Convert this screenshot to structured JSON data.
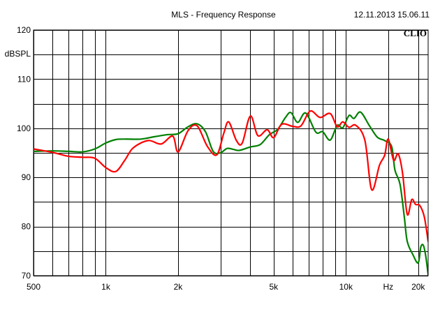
{
  "chart_data": {
    "type": "line",
    "title": "MLS - Frequency Response",
    "timestamp": "12.11.2013 15.06.11",
    "brand": "CLIO",
    "ylabel": "dBSPL",
    "xlabel": "Hz",
    "xscale": "log",
    "xlim": [
      500,
      22000
    ],
    "ylim": [
      70,
      120
    ],
    "grid": true,
    "colors": {
      "background": "#ffffff",
      "grid": "#000000"
    },
    "x_ticks": [
      {
        "value": 500,
        "label": "500"
      },
      {
        "value": 1000,
        "label": "1k"
      },
      {
        "value": 2000,
        "label": "2k"
      },
      {
        "value": 5000,
        "label": "5k"
      },
      {
        "value": 10000,
        "label": "10k"
      },
      {
        "value": 15000,
        "label": "Hz"
      },
      {
        "value": 20000,
        "label": "20k"
      }
    ],
    "x_minor_grid": [
      600,
      700,
      800,
      900,
      3000,
      4000,
      6000,
      7000,
      8000,
      9000
    ],
    "y_ticks": [
      {
        "value": 120,
        "label": "120"
      },
      {
        "value": 110,
        "label": "110"
      },
      {
        "value": 100,
        "label": "100"
      },
      {
        "value": 90,
        "label": "90"
      },
      {
        "value": 80,
        "label": "80"
      },
      {
        "value": 70,
        "label": "70"
      }
    ],
    "y_minor_grid": [
      115,
      105,
      95,
      85,
      75
    ],
    "series": [
      {
        "color": "#008000",
        "points": [
          [
            500,
            95.3
          ],
          [
            600,
            95.4
          ],
          [
            700,
            95.3
          ],
          [
            800,
            95.2
          ],
          [
            900,
            95.8
          ],
          [
            1000,
            97.0
          ],
          [
            1100,
            97.7
          ],
          [
            1200,
            97.8
          ],
          [
            1400,
            97.8
          ],
          [
            1600,
            98.3
          ],
          [
            1800,
            98.7
          ],
          [
            2000,
            98.9
          ],
          [
            2200,
            100.3
          ],
          [
            2400,
            100.9
          ],
          [
            2600,
            99.3
          ],
          [
            2800,
            95.3
          ],
          [
            3000,
            95.0
          ],
          [
            3200,
            95.9
          ],
          [
            3400,
            95.7
          ],
          [
            3600,
            95.5
          ],
          [
            4000,
            96.2
          ],
          [
            4400,
            96.7
          ],
          [
            4800,
            98.7
          ],
          [
            5200,
            99.8
          ],
          [
            5600,
            102.2
          ],
          [
            5900,
            103.2
          ],
          [
            6300,
            101.2
          ],
          [
            6800,
            103.1
          ],
          [
            7500,
            99.2
          ],
          [
            8000,
            99.3
          ],
          [
            8600,
            97.6
          ],
          [
            9200,
            100.6
          ],
          [
            9700,
            100.1
          ],
          [
            10300,
            102.6
          ],
          [
            10800,
            102.0
          ],
          [
            11500,
            103.3
          ],
          [
            12500,
            100.6
          ],
          [
            13500,
            98.2
          ],
          [
            14500,
            97.5
          ],
          [
            15500,
            96.3
          ],
          [
            16000,
            91.5
          ],
          [
            16800,
            88.6
          ],
          [
            17500,
            82.0
          ],
          [
            18000,
            77.0
          ],
          [
            19000,
            74.3
          ],
          [
            20000,
            72.6
          ],
          [
            20500,
            75.8
          ],
          [
            21000,
            76.2
          ],
          [
            21500,
            74.0
          ],
          [
            22000,
            70.2
          ]
        ]
      },
      {
        "color": "#ff0000",
        "points": [
          [
            500,
            95.8
          ],
          [
            600,
            95.1
          ],
          [
            700,
            94.3
          ],
          [
            800,
            94.1
          ],
          [
            900,
            93.9
          ],
          [
            1000,
            92.0
          ],
          [
            1100,
            91.2
          ],
          [
            1200,
            93.5
          ],
          [
            1300,
            96.0
          ],
          [
            1500,
            97.5
          ],
          [
            1700,
            96.8
          ],
          [
            1900,
            98.4
          ],
          [
            2000,
            95.2
          ],
          [
            2200,
            99.5
          ],
          [
            2400,
            100.5
          ],
          [
            2650,
            96.3
          ],
          [
            2900,
            94.6
          ],
          [
            3100,
            99.0
          ],
          [
            3250,
            101.3
          ],
          [
            3500,
            97.5
          ],
          [
            3700,
            97.0
          ],
          [
            4000,
            102.5
          ],
          [
            4300,
            98.5
          ],
          [
            4700,
            99.7
          ],
          [
            5000,
            98.1
          ],
          [
            5400,
            100.8
          ],
          [
            6000,
            100.4
          ],
          [
            6500,
            100.5
          ],
          [
            7100,
            103.5
          ],
          [
            7800,
            102.2
          ],
          [
            8600,
            103.0
          ],
          [
            9200,
            100.3
          ],
          [
            9700,
            101.3
          ],
          [
            10300,
            100.2
          ],
          [
            11000,
            100.6
          ],
          [
            12000,
            97.5
          ],
          [
            12800,
            87.5
          ],
          [
            13800,
            92.5
          ],
          [
            14500,
            94.5
          ],
          [
            15000,
            97.8
          ],
          [
            15800,
            93.5
          ],
          [
            16500,
            94.8
          ],
          [
            17200,
            91.0
          ],
          [
            18000,
            82.5
          ],
          [
            18800,
            85.5
          ],
          [
            19500,
            84.5
          ],
          [
            20300,
            84.3
          ],
          [
            21200,
            82.0
          ],
          [
            22000,
            77.0
          ]
        ]
      }
    ]
  }
}
